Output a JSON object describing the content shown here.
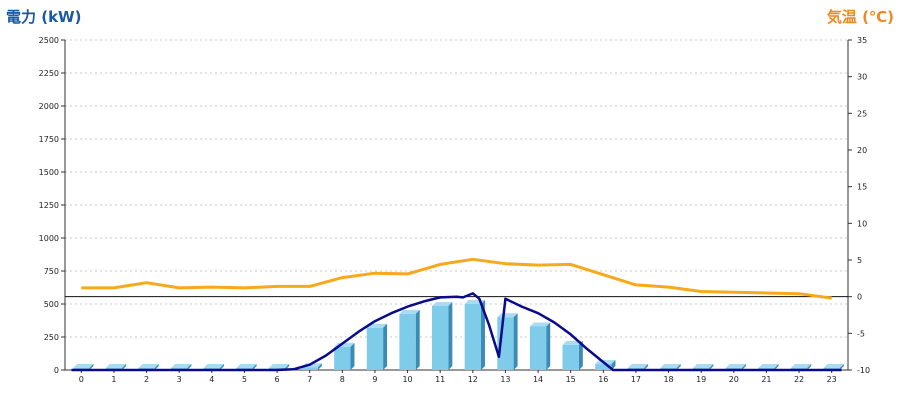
{
  "chart_data": {
    "type": "bar",
    "y_left_title": "電力 (kW)",
    "y_right_title": "気温 (℃)",
    "categories": [
      "0",
      "1",
      "2",
      "3",
      "4",
      "5",
      "6",
      "7",
      "8",
      "9",
      "10",
      "11",
      "12",
      "13",
      "14",
      "15",
      "16",
      "17",
      "18",
      "19",
      "20",
      "21",
      "22",
      "23"
    ],
    "ylim_left": [
      0,
      2500
    ],
    "yticks_left": [
      "0",
      "250",
      "500",
      "750",
      "1000",
      "1250",
      "1500",
      "1750",
      "2000",
      "2250",
      "2500"
    ],
    "ylim_right": [
      -10,
      35
    ],
    "yticks_right": [
      "-10",
      "-5",
      "0",
      "5",
      "10",
      "15",
      "20",
      "25",
      "30",
      "35"
    ],
    "series": [
      {
        "type": "bar",
        "axis": "left",
        "color": "#7ecbea",
        "values": [
          0,
          0,
          0,
          0,
          0,
          0,
          0,
          20,
          175,
          320,
          425,
          485,
          500,
          400,
          330,
          190,
          45,
          0,
          0,
          0,
          0,
          0,
          0,
          0
        ]
      },
      {
        "type": "line",
        "axis": "left",
        "color": "#0a0a8c",
        "x": [
          -0.3,
          0,
          1,
          2,
          3,
          4,
          5,
          6,
          6.5,
          7,
          7.5,
          8,
          8.5,
          9,
          9.5,
          10,
          10.5,
          11,
          11.5,
          11.7,
          12,
          12.2,
          12.5,
          12.8,
          13,
          13.5,
          14,
          14.5,
          15,
          15.5,
          16,
          16.3,
          17,
          18,
          19,
          20,
          21,
          22,
          23.3
        ],
        "values": [
          0,
          0,
          0,
          0,
          0,
          0,
          0,
          0,
          5,
          40,
          110,
          200,
          290,
          370,
          430,
          480,
          520,
          550,
          555,
          550,
          580,
          540,
          340,
          100,
          540,
          480,
          430,
          360,
          270,
          160,
          60,
          0,
          0,
          0,
          0,
          0,
          0,
          0,
          0
        ]
      },
      {
        "type": "line",
        "axis": "right",
        "color": "#f7a81b",
        "x": [
          0,
          1,
          2,
          3,
          4,
          5,
          6,
          7,
          8,
          9,
          10,
          11,
          12,
          13,
          14,
          15,
          16,
          17,
          18,
          19,
          20,
          21,
          22,
          23
        ],
        "values": [
          1.2,
          1.2,
          1.9,
          1.2,
          1.3,
          1.2,
          1.4,
          1.4,
          2.6,
          3.2,
          3.1,
          4.4,
          5.1,
          4.5,
          4.3,
          4.4,
          3.0,
          1.6,
          1.3,
          0.7,
          0.6,
          0.5,
          0.4,
          -0.2
        ]
      }
    ],
    "grid": true
  }
}
